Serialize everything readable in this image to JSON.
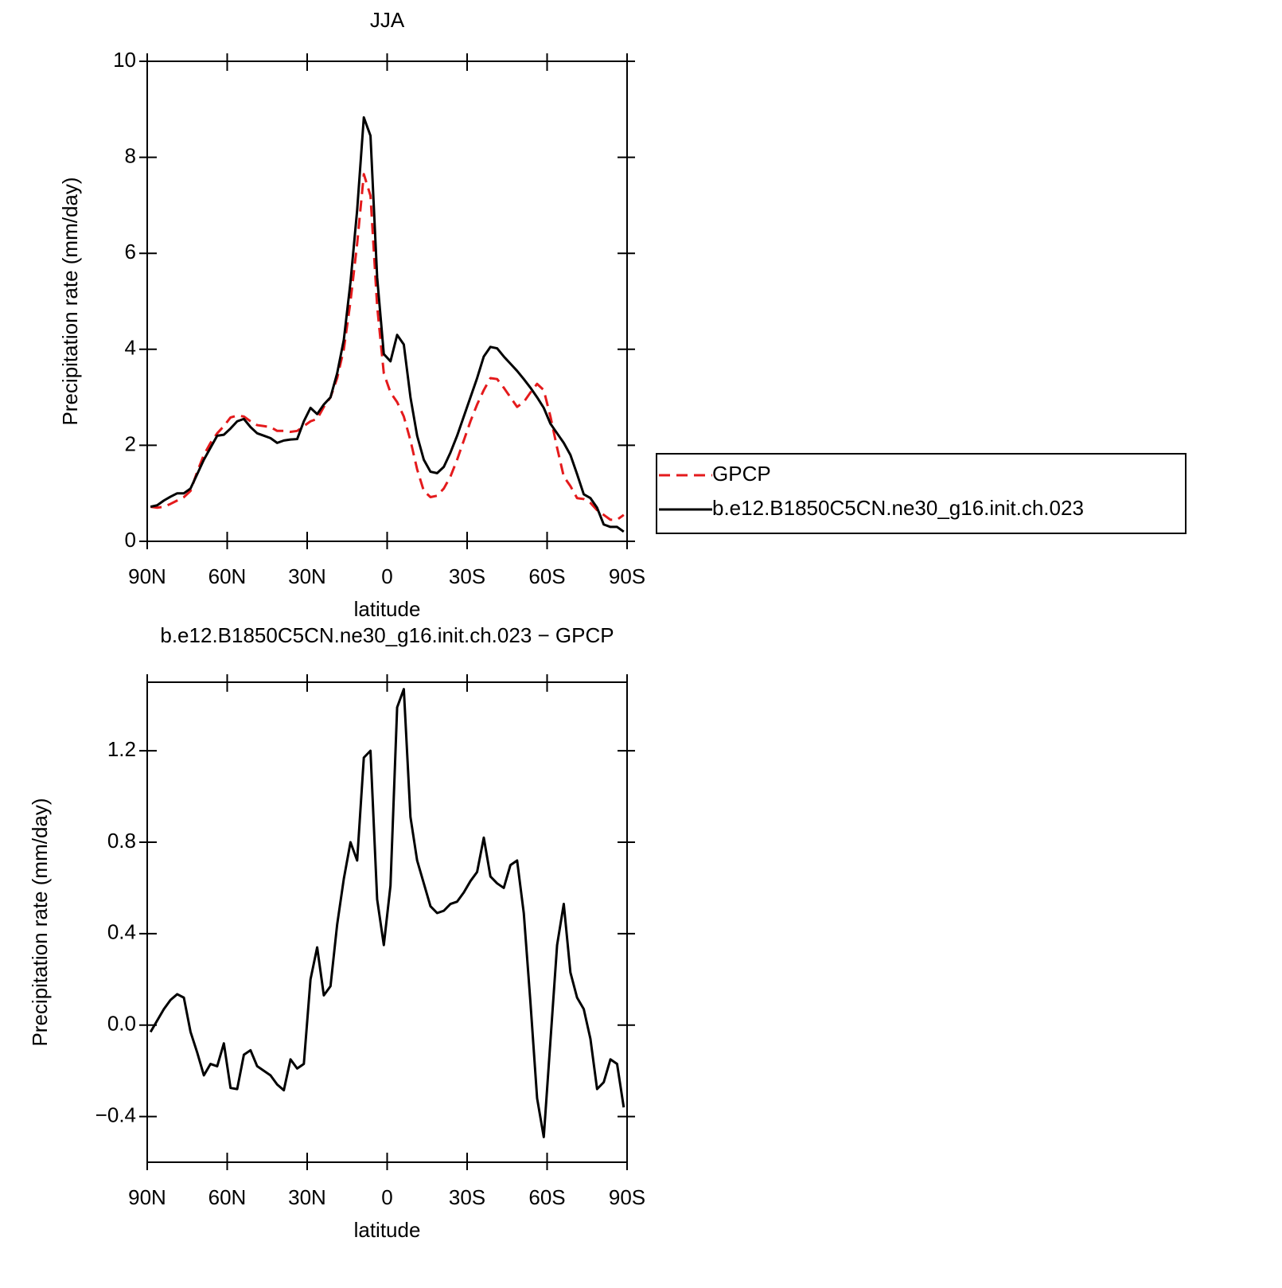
{
  "chart_data": [
    {
      "type": "line",
      "title": "JJA",
      "x_label": "latitude",
      "y_label": "Precipitation rate (mm/day)",
      "x": [
        88.75,
        86.25,
        83.75,
        81.25,
        78.75,
        76.25,
        73.75,
        71.25,
        68.75,
        66.25,
        63.75,
        61.25,
        58.75,
        56.25,
        53.75,
        51.25,
        48.75,
        46.25,
        43.75,
        41.25,
        38.75,
        36.25,
        33.75,
        31.25,
        28.75,
        26.25,
        23.75,
        21.25,
        18.75,
        16.25,
        13.75,
        11.25,
        8.75,
        6.25,
        3.75,
        1.25,
        -1.25,
        -3.75,
        -6.25,
        -8.75,
        -11.25,
        -13.75,
        -16.25,
        -18.75,
        -21.25,
        -23.75,
        -26.25,
        -28.75,
        -31.25,
        -33.75,
        -36.25,
        -38.75,
        -41.25,
        -43.75,
        -46.25,
        -48.75,
        -51.25,
        -53.75,
        -56.25,
        -58.75,
        -61.25,
        -63.75,
        -66.25,
        -68.75,
        -71.25,
        -73.75,
        -76.25,
        -78.75,
        -81.25,
        -83.75,
        -86.25,
        -88.75
      ],
      "xlim": [
        90,
        -90
      ],
      "xticks": [
        {
          "value": 90,
          "label": "90N"
        },
        {
          "value": 60,
          "label": "60N"
        },
        {
          "value": 30,
          "label": "30N"
        },
        0,
        {
          "value": -30,
          "label": "30S"
        },
        {
          "value": -60,
          "label": "60S"
        },
        {
          "value": -90,
          "label": "90S"
        }
      ],
      "ylim": [
        0,
        10
      ],
      "yticks": [
        0,
        2,
        4,
        6,
        8,
        10
      ],
      "legend": "right",
      "series": [
        {
          "name": "GPCP",
          "color": "#e41a1c",
          "line_style": "dashed",
          "values": [
            0.72,
            0.7,
            0.72,
            0.78,
            0.85,
            0.92,
            1.05,
            1.45,
            1.8,
            2.05,
            2.25,
            2.4,
            2.58,
            2.62,
            2.6,
            2.5,
            2.42,
            2.4,
            2.38,
            2.3,
            2.3,
            2.28,
            2.3,
            2.4,
            2.5,
            2.55,
            2.8,
            3.0,
            3.4,
            4.0,
            5.0,
            6.2,
            7.65,
            7.2,
            4.9,
            3.5,
            3.1,
            2.9,
            2.6,
            2.1,
            1.5,
            1.05,
            0.92,
            0.95,
            1.1,
            1.35,
            1.7,
            2.1,
            2.5,
            2.85,
            3.15,
            3.4,
            3.38,
            3.2,
            3.0,
            2.8,
            2.9,
            3.1,
            3.28,
            3.15,
            2.6,
            1.95,
            1.35,
            1.15,
            0.9,
            0.88,
            0.8,
            0.65,
            0.55,
            0.45,
            0.45,
            0.55
          ]
        },
        {
          "name": "b.e12.B1850C5CN.ne30_g16.init.ch.023",
          "color": "#000000",
          "line_style": "solid",
          "values": [
            0.72,
            0.75,
            0.85,
            0.93,
            1.0,
            1.0,
            1.1,
            1.4,
            1.7,
            1.95,
            2.2,
            2.22,
            2.35,
            2.5,
            2.55,
            2.38,
            2.25,
            2.2,
            2.15,
            2.05,
            2.1,
            2.12,
            2.13,
            2.5,
            2.78,
            2.65,
            2.85,
            3.0,
            3.5,
            4.2,
            5.4,
            6.9,
            8.83,
            8.45,
            5.5,
            3.9,
            3.75,
            4.3,
            4.1,
            3.0,
            2.2,
            1.7,
            1.45,
            1.42,
            1.55,
            1.85,
            2.2,
            2.6,
            3.0,
            3.4,
            3.85,
            4.05,
            4.02,
            3.85,
            3.7,
            3.55,
            3.38,
            3.2,
            3.0,
            2.78,
            2.45,
            2.25,
            2.05,
            1.8,
            1.4,
            0.98,
            0.9,
            0.7,
            0.35,
            0.3,
            0.3,
            0.2
          ]
        }
      ]
    },
    {
      "type": "line",
      "title": "b.e12.B1850C5CN.ne30_g16.init.ch.023 − GPCP",
      "x_label": "latitude",
      "y_label": "Precipitation rate (mm/day)",
      "x": [
        88.75,
        86.25,
        83.75,
        81.25,
        78.75,
        76.25,
        73.75,
        71.25,
        68.75,
        66.25,
        63.75,
        61.25,
        58.75,
        56.25,
        53.75,
        51.25,
        48.75,
        46.25,
        43.75,
        41.25,
        38.75,
        36.25,
        33.75,
        31.25,
        28.75,
        26.25,
        23.75,
        21.25,
        18.75,
        16.25,
        13.75,
        11.25,
        8.75,
        6.25,
        3.75,
        1.25,
        -1.25,
        -3.75,
        -6.25,
        -8.75,
        -11.25,
        -13.75,
        -16.25,
        -18.75,
        -21.25,
        -23.75,
        -26.25,
        -28.75,
        -31.25,
        -33.75,
        -36.25,
        -38.75,
        -41.25,
        -43.75,
        -46.25,
        -48.75,
        -51.25,
        -53.75,
        -56.25,
        -58.75,
        -61.25,
        -63.75,
        -66.25,
        -68.75,
        -71.25,
        -73.75,
        -76.25,
        -78.75,
        -81.25,
        -83.75,
        -86.25,
        -88.75
      ],
      "xlim": [
        90,
        -90
      ],
      "xticks": [
        {
          "value": 90,
          "label": "90N"
        },
        {
          "value": 60,
          "label": "60N"
        },
        {
          "value": 30,
          "label": "30N"
        },
        0,
        {
          "value": -30,
          "label": "30S"
        },
        {
          "value": -60,
          "label": "60S"
        },
        {
          "value": -90,
          "label": "90S"
        }
      ],
      "ylim": [
        -0.6,
        1.5
      ],
      "yticks": [
        {
          "value": -0.4,
          "label": "−0.4"
        },
        0.4,
        0.8,
        1.2,
        {
          "value": 0,
          "label": "0.0"
        }
      ],
      "series": [
        {
          "color": "#000000",
          "line_style": "solid",
          "values": [
            -0.03,
            0.02,
            0.07,
            0.11,
            0.135,
            0.12,
            -0.03,
            -0.12,
            -0.22,
            -0.17,
            -0.18,
            -0.08,
            -0.275,
            -0.28,
            -0.13,
            -0.11,
            -0.18,
            -0.2,
            -0.22,
            -0.26,
            -0.285,
            -0.15,
            -0.19,
            -0.17,
            0.2,
            0.34,
            0.13,
            0.17,
            0.44,
            0.64,
            0.8,
            0.72,
            1.17,
            1.2,
            0.55,
            0.35,
            0.61,
            1.39,
            1.47,
            0.91,
            0.72,
            0.62,
            0.52,
            0.49,
            0.5,
            0.53,
            0.54,
            0.58,
            0.63,
            0.67,
            0.82,
            0.65,
            0.62,
            0.6,
            0.7,
            0.72,
            0.49,
            0.1,
            -0.32,
            -0.49,
            -0.07,
            0.35,
            0.53,
            0.23,
            0.12,
            0.07,
            -0.06,
            -0.28,
            -0.25,
            -0.15,
            -0.17,
            -0.36
          ]
        }
      ]
    }
  ]
}
